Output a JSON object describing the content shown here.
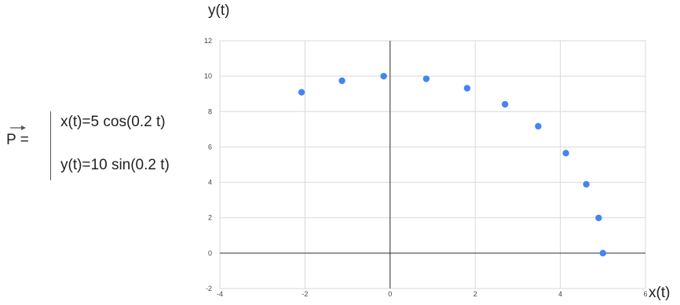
{
  "equation": {
    "lhs": "P =",
    "x_eq": "x(t)=5 cos(0.2 t)",
    "y_eq": "y(t)=10 sin(0.2 t)"
  },
  "colors": {
    "points": "#4285f4",
    "grid": "#d9d9d9",
    "axis": "#333333"
  },
  "chart_data": {
    "type": "scatter",
    "xlabel": "x(t)",
    "ylabel": "y(t)",
    "xlim": [
      -4,
      6
    ],
    "ylim": [
      -2,
      12
    ],
    "x_ticks": [
      -4,
      -2,
      0,
      2,
      4,
      6
    ],
    "y_ticks": [
      -2,
      0,
      2,
      4,
      6,
      8,
      10,
      12
    ],
    "grid": true,
    "points": [
      {
        "x": 5.0,
        "y": 0.0
      },
      {
        "x": 4.9,
        "y": 1.99
      },
      {
        "x": 4.61,
        "y": 3.89
      },
      {
        "x": 4.13,
        "y": 5.65
      },
      {
        "x": 3.48,
        "y": 7.17
      },
      {
        "x": 2.7,
        "y": 8.41
      },
      {
        "x": 1.81,
        "y": 9.32
      },
      {
        "x": 0.85,
        "y": 9.85
      },
      {
        "x": -0.15,
        "y": 10.0
      },
      {
        "x": -1.13,
        "y": 9.74
      },
      {
        "x": -2.08,
        "y": 9.09
      }
    ]
  }
}
